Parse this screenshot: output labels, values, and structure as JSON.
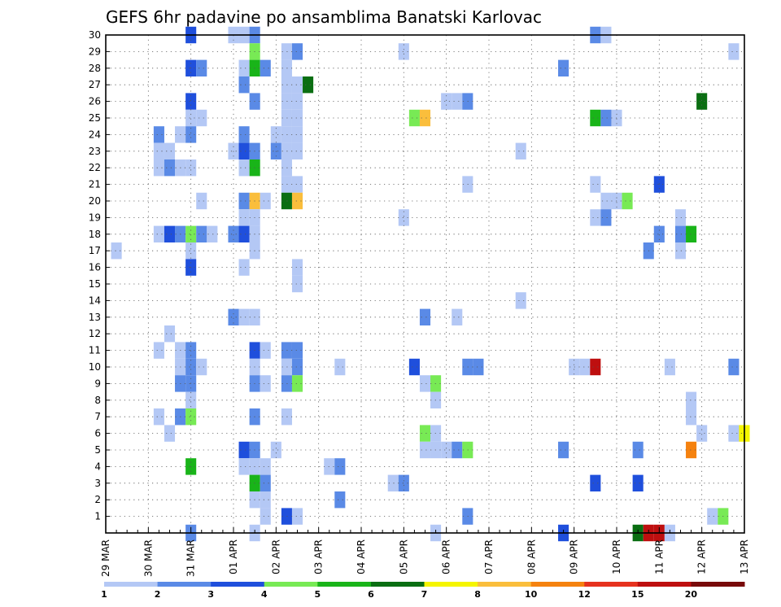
{
  "chart_data": {
    "type": "heatmap",
    "title": "GEFS 6hr padavine po ansamblima Banatski Karlovac",
    "x_tick_labels": [
      "29 MAR",
      "30 MAR",
      "31 MAR",
      "01 APR",
      "02 APR",
      "03 APR",
      "04 APR",
      "05 APR",
      "06 APR",
      "07 APR",
      "08 APR",
      "09 APR",
      "10 APR",
      "11 APR",
      "12 APR",
      "13 APR"
    ],
    "y_tick_labels": [
      "1",
      "2",
      "3",
      "4",
      "5",
      "6",
      "7",
      "8",
      "9",
      "10",
      "11",
      "12",
      "13",
      "14",
      "15",
      "16",
      "17",
      "18",
      "19",
      "20",
      "21",
      "22",
      "23",
      "24",
      "25",
      "26",
      "27",
      "28",
      "29",
      "30"
    ],
    "x_unit": "6-hour step from 29 MAR 00Z",
    "xlim_steps": [
      0,
      60
    ],
    "ylim_members": [
      0,
      30
    ],
    "grid": "dotted",
    "colorbar": {
      "levels": [
        "1",
        "2",
        "3",
        "4",
        "5",
        "6",
        "7",
        "8",
        "10",
        "12",
        "15",
        "20"
      ],
      "colors": [
        "#b4c8f5",
        "#5a8ae6",
        "#1f4fdc",
        "#78ea55",
        "#19b419",
        "#0a6e12",
        "#f5f500",
        "#fabe3c",
        "#f5820f",
        "#e6321e",
        "#be0f0f",
        "#780a0a"
      ]
    },
    "cells": [
      [
        8,
        30,
        3
      ],
      [
        12,
        30,
        1
      ],
      [
        13,
        30,
        1
      ],
      [
        14,
        30,
        2
      ],
      [
        46,
        30,
        2
      ],
      [
        47,
        30,
        1
      ],
      [
        14,
        29,
        4
      ],
      [
        17,
        29,
        1
      ],
      [
        18,
        29,
        2
      ],
      [
        28,
        29,
        1
      ],
      [
        59,
        29,
        1
      ],
      [
        8,
        28,
        3
      ],
      [
        9,
        28,
        2
      ],
      [
        13,
        28,
        1
      ],
      [
        14,
        28,
        5
      ],
      [
        15,
        28,
        2
      ],
      [
        17,
        28,
        1
      ],
      [
        43,
        28,
        2
      ],
      [
        13,
        27,
        2
      ],
      [
        17,
        27,
        1
      ],
      [
        18,
        27,
        1
      ],
      [
        19,
        27,
        6
      ],
      [
        8,
        26,
        3
      ],
      [
        14,
        26,
        2
      ],
      [
        17,
        26,
        1
      ],
      [
        18,
        26,
        1
      ],
      [
        32,
        26,
        1
      ],
      [
        33,
        26,
        1
      ],
      [
        34,
        26,
        2
      ],
      [
        56,
        26,
        6
      ],
      [
        8,
        25,
        1
      ],
      [
        9,
        25,
        1
      ],
      [
        17,
        25,
        1
      ],
      [
        18,
        25,
        1
      ],
      [
        29,
        25,
        4
      ],
      [
        30,
        25,
        8
      ],
      [
        46,
        25,
        5
      ],
      [
        47,
        25,
        2
      ],
      [
        48,
        25,
        1
      ],
      [
        5,
        24,
        2
      ],
      [
        7,
        24,
        1
      ],
      [
        8,
        24,
        2
      ],
      [
        13,
        24,
        2
      ],
      [
        16,
        24,
        1
      ],
      [
        17,
        24,
        1
      ],
      [
        18,
        24,
        1
      ],
      [
        5,
        23,
        1
      ],
      [
        6,
        23,
        1
      ],
      [
        12,
        23,
        1
      ],
      [
        13,
        23,
        3
      ],
      [
        14,
        23,
        2
      ],
      [
        16,
        23,
        2
      ],
      [
        17,
        23,
        1
      ],
      [
        18,
        23,
        1
      ],
      [
        39,
        23,
        1
      ],
      [
        5,
        22,
        1
      ],
      [
        6,
        22,
        2
      ],
      [
        7,
        22,
        1
      ],
      [
        8,
        22,
        1
      ],
      [
        13,
        22,
        1
      ],
      [
        14,
        22,
        5
      ],
      [
        17,
        22,
        1
      ],
      [
        17,
        21,
        1
      ],
      [
        18,
        21,
        1
      ],
      [
        34,
        21,
        1
      ],
      [
        46,
        21,
        1
      ],
      [
        52,
        21,
        3
      ],
      [
        9,
        20,
        1
      ],
      [
        13,
        20,
        2
      ],
      [
        14,
        20,
        8
      ],
      [
        15,
        20,
        1
      ],
      [
        17,
        20,
        6
      ],
      [
        18,
        20,
        8
      ],
      [
        47,
        20,
        1
      ],
      [
        48,
        20,
        1
      ],
      [
        49,
        20,
        4
      ],
      [
        13,
        19,
        1
      ],
      [
        14,
        19,
        1
      ],
      [
        28,
        19,
        1
      ],
      [
        46,
        19,
        1
      ],
      [
        47,
        19,
        2
      ],
      [
        54,
        19,
        1
      ],
      [
        5,
        18,
        1
      ],
      [
        6,
        18,
        3
      ],
      [
        7,
        18,
        2
      ],
      [
        8,
        18,
        4
      ],
      [
        9,
        18,
        2
      ],
      [
        10,
        18,
        1
      ],
      [
        12,
        18,
        2
      ],
      [
        13,
        18,
        3
      ],
      [
        14,
        18,
        1
      ],
      [
        52,
        18,
        2
      ],
      [
        54,
        18,
        2
      ],
      [
        55,
        18,
        5
      ],
      [
        1,
        17,
        1
      ],
      [
        8,
        17,
        1
      ],
      [
        14,
        17,
        1
      ],
      [
        51,
        17,
        2
      ],
      [
        54,
        17,
        1
      ],
      [
        8,
        16,
        3
      ],
      [
        13,
        16,
        1
      ],
      [
        18,
        16,
        1
      ],
      [
        18,
        15,
        1
      ],
      [
        39,
        14,
        1
      ],
      [
        12,
        13,
        2
      ],
      [
        13,
        13,
        1
      ],
      [
        14,
        13,
        1
      ],
      [
        30,
        13,
        2
      ],
      [
        33,
        13,
        1
      ],
      [
        6,
        12,
        1
      ],
      [
        5,
        11,
        1
      ],
      [
        7,
        11,
        1
      ],
      [
        8,
        11,
        2
      ],
      [
        14,
        11,
        3
      ],
      [
        15,
        11,
        1
      ],
      [
        17,
        11,
        2
      ],
      [
        18,
        11,
        2
      ],
      [
        7,
        10,
        1
      ],
      [
        8,
        10,
        2
      ],
      [
        9,
        10,
        1
      ],
      [
        14,
        10,
        1
      ],
      [
        17,
        10,
        1
      ],
      [
        18,
        10,
        2
      ],
      [
        22,
        10,
        1
      ],
      [
        29,
        10,
        3
      ],
      [
        34,
        10,
        2
      ],
      [
        35,
        10,
        2
      ],
      [
        44,
        10,
        1
      ],
      [
        45,
        10,
        1
      ],
      [
        46,
        10,
        11
      ],
      [
        53,
        10,
        1
      ],
      [
        59,
        10,
        2
      ],
      [
        7,
        9,
        2
      ],
      [
        8,
        9,
        2
      ],
      [
        14,
        9,
        2
      ],
      [
        15,
        9,
        1
      ],
      [
        17,
        9,
        2
      ],
      [
        18,
        9,
        4
      ],
      [
        30,
        9,
        1
      ],
      [
        31,
        9,
        4
      ],
      [
        8,
        8,
        1
      ],
      [
        31,
        8,
        1
      ],
      [
        55,
        8,
        1
      ],
      [
        5,
        7,
        1
      ],
      [
        7,
        7,
        2
      ],
      [
        8,
        7,
        4
      ],
      [
        14,
        7,
        2
      ],
      [
        17,
        7,
        1
      ],
      [
        55,
        7,
        1
      ],
      [
        6,
        6,
        1
      ],
      [
        30,
        6,
        4
      ],
      [
        31,
        6,
        1
      ],
      [
        56,
        6,
        1
      ],
      [
        59,
        6,
        1
      ],
      [
        60,
        6,
        7
      ],
      [
        13,
        5,
        3
      ],
      [
        14,
        5,
        2
      ],
      [
        16,
        5,
        1
      ],
      [
        30,
        5,
        1
      ],
      [
        31,
        5,
        1
      ],
      [
        32,
        5,
        1
      ],
      [
        33,
        5,
        2
      ],
      [
        34,
        5,
        4
      ],
      [
        43,
        5,
        2
      ],
      [
        50,
        5,
        2
      ],
      [
        55,
        5,
        9
      ],
      [
        8,
        4,
        5
      ],
      [
        13,
        4,
        1
      ],
      [
        14,
        4,
        1
      ],
      [
        15,
        4,
        1
      ],
      [
        21,
        4,
        1
      ],
      [
        22,
        4,
        2
      ],
      [
        14,
        3,
        5
      ],
      [
        15,
        3,
        2
      ],
      [
        27,
        3,
        1
      ],
      [
        28,
        3,
        2
      ],
      [
        46,
        3,
        3
      ],
      [
        50,
        3,
        3
      ],
      [
        14,
        2,
        1
      ],
      [
        15,
        2,
        1
      ],
      [
        22,
        2,
        2
      ],
      [
        15,
        1,
        1
      ],
      [
        17,
        1,
        3
      ],
      [
        18,
        1,
        1
      ],
      [
        34,
        1,
        2
      ],
      [
        57,
        1,
        1
      ],
      [
        58,
        1,
        4
      ],
      [
        8,
        0,
        2
      ],
      [
        14,
        0,
        1
      ],
      [
        31,
        0,
        1
      ],
      [
        43,
        0,
        3
      ],
      [
        50,
        0,
        6
      ],
      [
        51,
        0,
        11
      ],
      [
        52,
        0,
        11
      ],
      [
        53,
        0,
        1
      ]
    ]
  }
}
